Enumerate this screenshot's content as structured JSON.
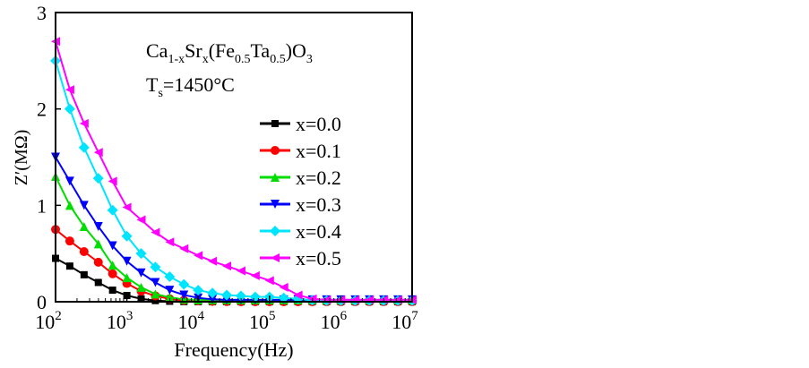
{
  "chart_data": {
    "type": "line",
    "xlabel": "Frequency(Hz)",
    "ylabel": "Z′(MΩ)",
    "xscale": "log",
    "xlim": [
      100,
      10000000
    ],
    "ylim": [
      0,
      3
    ],
    "yticks": [
      "0",
      "1",
      "2",
      "3"
    ],
    "xticks": [
      {
        "base": "10",
        "exp": "2"
      },
      {
        "base": "10",
        "exp": "3"
      },
      {
        "base": "10",
        "exp": "4"
      },
      {
        "base": "10",
        "exp": "5"
      },
      {
        "base": "10",
        "exp": "6"
      },
      {
        "base": "10",
        "exp": "7"
      }
    ],
    "annotation": {
      "formula": [
        "Ca",
        "1-x",
        "Sr",
        "x",
        "(Fe",
        "0.5",
        "Ta",
        "0.5",
        ")O",
        "3"
      ],
      "temp": [
        "T",
        "s",
        "=1450°C"
      ]
    },
    "legend_position": "right-middle",
    "log10_x": [
      2.0,
      2.2,
      2.4,
      2.6,
      2.8,
      3.0,
      3.2,
      3.4,
      3.6,
      3.8,
      4.0,
      4.2,
      4.4,
      4.6,
      4.8,
      5.0,
      5.2,
      5.4,
      5.6,
      5.8,
      6.0,
      6.2,
      6.4,
      6.6,
      6.8,
      7.0
    ],
    "series": [
      {
        "name": "x=0.0",
        "color": "#000000",
        "marker": "square",
        "values": [
          0.45,
          0.37,
          0.28,
          0.2,
          0.12,
          0.065,
          0.03,
          0.012,
          0.005,
          0.002,
          0,
          0,
          0,
          0,
          0,
          0,
          0,
          0,
          0,
          0,
          0,
          0,
          0,
          0,
          0,
          0
        ]
      },
      {
        "name": "x=0.1",
        "color": "#ff0000",
        "marker": "circle",
        "values": [
          0.75,
          0.63,
          0.52,
          0.41,
          0.29,
          0.19,
          0.11,
          0.06,
          0.03,
          0.015,
          0.008,
          0.004,
          0.002,
          0,
          0,
          0,
          0,
          0,
          0,
          0,
          0,
          0,
          0,
          0,
          0,
          0
        ]
      },
      {
        "name": "x=0.2",
        "color": "#00dd00",
        "marker": "triangle-up",
        "values": [
          1.3,
          1.0,
          0.78,
          0.6,
          0.38,
          0.25,
          0.15,
          0.08,
          0.045,
          0.025,
          0.02,
          0.02,
          0.02,
          0.02,
          0.02,
          0.02,
          0.02,
          0.02,
          0.02,
          0.02,
          0.02,
          0.02,
          0.02,
          0.02,
          0.02,
          0.02
        ]
      },
      {
        "name": "x=0.3",
        "color": "#0000ff",
        "marker": "triangle-down",
        "values": [
          1.5,
          1.25,
          1.0,
          0.78,
          0.58,
          0.42,
          0.3,
          0.2,
          0.12,
          0.07,
          0.04,
          0.025,
          0.02,
          0.02,
          0.02,
          0.02,
          0.02,
          0.02,
          0.02,
          0.02,
          0.02,
          0.02,
          0.02,
          0.02,
          0.02,
          0.02
        ]
      },
      {
        "name": "x=0.4",
        "color": "#00e5ff",
        "marker": "diamond",
        "values": [
          2.5,
          2.0,
          1.6,
          1.28,
          0.95,
          0.68,
          0.5,
          0.36,
          0.26,
          0.18,
          0.12,
          0.09,
          0.07,
          0.06,
          0.05,
          0.05,
          0.04,
          0.03,
          0.015,
          0.01,
          0.01,
          0.01,
          0.01,
          0.01,
          0.01,
          0.01
        ]
      },
      {
        "name": "x=0.5",
        "color": "#ff00ff",
        "marker": "triangle-left",
        "values": [
          2.7,
          2.2,
          1.85,
          1.55,
          1.25,
          0.98,
          0.85,
          0.72,
          0.62,
          0.55,
          0.48,
          0.42,
          0.37,
          0.32,
          0.27,
          0.22,
          0.15,
          0.07,
          0.03,
          0.02,
          0.02,
          0.02,
          0.02,
          0.02,
          0.02,
          0.02
        ]
      }
    ]
  }
}
